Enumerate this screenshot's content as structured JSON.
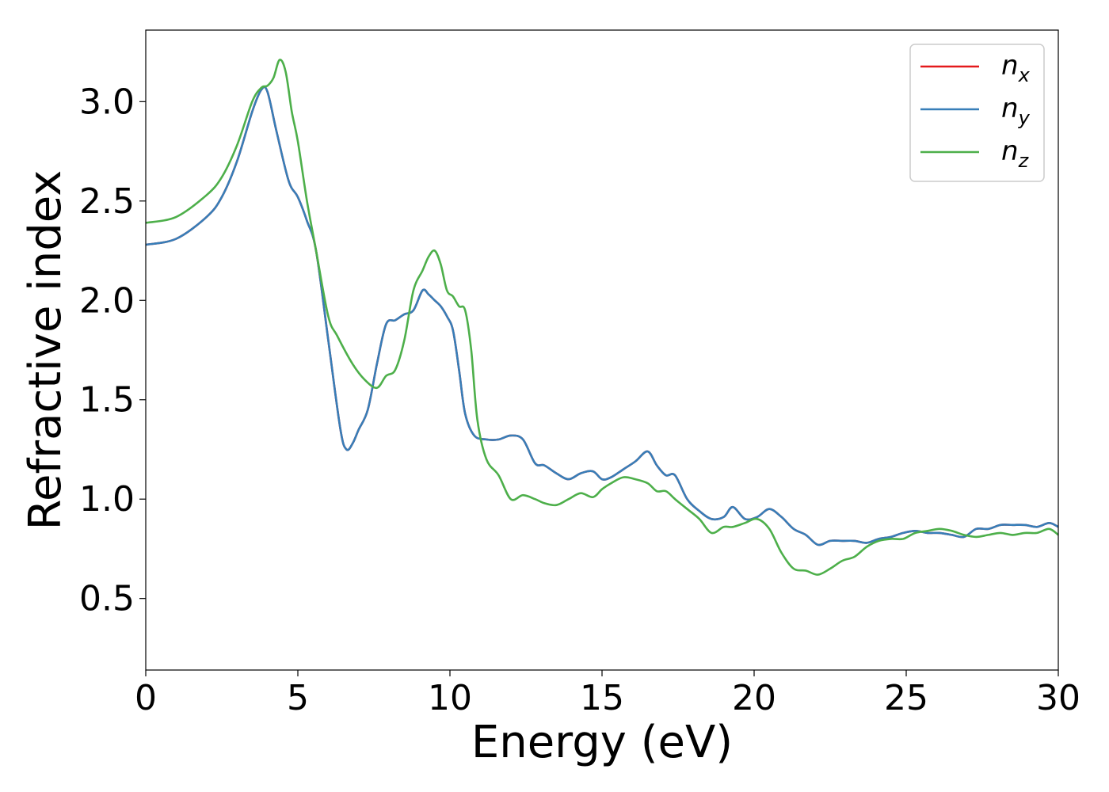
{
  "chart_data": {
    "type": "line",
    "xlabel": "Energy (eV)",
    "ylabel": "Refractive index",
    "xlim": [
      0,
      30
    ],
    "ylim": [
      0.14,
      3.36
    ],
    "xticks": [
      0,
      5,
      10,
      15,
      20,
      25,
      30
    ],
    "xtick_labels": [
      "0",
      "5",
      "10",
      "15",
      "20",
      "25",
      "30"
    ],
    "yticks": [
      0.5,
      1.0,
      1.5,
      2.0,
      2.5,
      3.0
    ],
    "ytick_labels": [
      "0.5",
      "1.0",
      "1.5",
      "2.0",
      "2.5",
      "3.0"
    ],
    "grid": false,
    "legend_position": "top-right",
    "series": [
      {
        "name": "n",
        "sub": "x",
        "color": "#e41a1c",
        "x": [
          0,
          1,
          2,
          2.5,
          3,
          3.5,
          3.8,
          4.0,
          4.3,
          4.7,
          5.0,
          5.3,
          5.6,
          6.0,
          6.4,
          6.6,
          6.8,
          7.0,
          7.3,
          7.6,
          7.9,
          8.2,
          8.5,
          8.8,
          9.1,
          9.3,
          9.5,
          9.7,
          9.9,
          10.1,
          10.3,
          10.5,
          10.8,
          11.2,
          11.6,
          12.0,
          12.4,
          12.8,
          13.1,
          13.5,
          13.9,
          14.3,
          14.7,
          15.0,
          15.3,
          15.7,
          16.1,
          16.5,
          16.8,
          17.1,
          17.4,
          17.8,
          18.2,
          18.6,
          19.0,
          19.3,
          19.7,
          20.1,
          20.5,
          20.9,
          21.3,
          21.7,
          22.1,
          22.5,
          22.9,
          23.3,
          23.7,
          24.1,
          24.5,
          24.9,
          25.3,
          25.7,
          26.1,
          26.5,
          26.9,
          27.3,
          27.7,
          28.1,
          28.5,
          28.9,
          29.3,
          29.7,
          30
        ],
        "y": [
          2.28,
          2.31,
          2.42,
          2.52,
          2.7,
          2.95,
          3.06,
          3.05,
          2.85,
          2.6,
          2.52,
          2.4,
          2.25,
          1.8,
          1.35,
          1.25,
          1.28,
          1.35,
          1.45,
          1.68,
          1.88,
          1.9,
          1.93,
          1.95,
          2.05,
          2.03,
          2.0,
          1.97,
          1.92,
          1.85,
          1.65,
          1.43,
          1.32,
          1.3,
          1.3,
          1.32,
          1.3,
          1.18,
          1.17,
          1.13,
          1.1,
          1.13,
          1.14,
          1.1,
          1.11,
          1.15,
          1.19,
          1.24,
          1.17,
          1.12,
          1.12,
          1.0,
          0.94,
          0.9,
          0.91,
          0.96,
          0.9,
          0.91,
          0.95,
          0.91,
          0.85,
          0.82,
          0.77,
          0.79,
          0.79,
          0.79,
          0.78,
          0.8,
          0.81,
          0.83,
          0.84,
          0.83,
          0.83,
          0.82,
          0.81,
          0.85,
          0.85,
          0.87,
          0.87,
          0.87,
          0.86,
          0.88,
          0.86
        ]
      },
      {
        "name": "n",
        "sub": "y",
        "color": "#377eb8",
        "x": [
          0,
          1,
          2,
          2.5,
          3,
          3.5,
          3.8,
          4.0,
          4.3,
          4.7,
          5.0,
          5.3,
          5.6,
          6.0,
          6.4,
          6.6,
          6.8,
          7.0,
          7.3,
          7.6,
          7.9,
          8.2,
          8.5,
          8.8,
          9.1,
          9.3,
          9.5,
          9.7,
          9.9,
          10.1,
          10.3,
          10.5,
          10.8,
          11.2,
          11.6,
          12.0,
          12.4,
          12.8,
          13.1,
          13.5,
          13.9,
          14.3,
          14.7,
          15.0,
          15.3,
          15.7,
          16.1,
          16.5,
          16.8,
          17.1,
          17.4,
          17.8,
          18.2,
          18.6,
          19.0,
          19.3,
          19.7,
          20.1,
          20.5,
          20.9,
          21.3,
          21.7,
          22.1,
          22.5,
          22.9,
          23.3,
          23.7,
          24.1,
          24.5,
          24.9,
          25.3,
          25.7,
          26.1,
          26.5,
          26.9,
          27.3,
          27.7,
          28.1,
          28.5,
          28.9,
          29.3,
          29.7,
          30
        ],
        "y": [
          2.28,
          2.31,
          2.42,
          2.52,
          2.7,
          2.95,
          3.06,
          3.05,
          2.85,
          2.6,
          2.52,
          2.4,
          2.25,
          1.8,
          1.35,
          1.25,
          1.28,
          1.35,
          1.45,
          1.68,
          1.88,
          1.9,
          1.93,
          1.95,
          2.05,
          2.03,
          2.0,
          1.97,
          1.92,
          1.85,
          1.65,
          1.43,
          1.32,
          1.3,
          1.3,
          1.32,
          1.3,
          1.18,
          1.17,
          1.13,
          1.1,
          1.13,
          1.14,
          1.1,
          1.11,
          1.15,
          1.19,
          1.24,
          1.17,
          1.12,
          1.12,
          1.0,
          0.94,
          0.9,
          0.91,
          0.96,
          0.9,
          0.91,
          0.95,
          0.91,
          0.85,
          0.82,
          0.77,
          0.79,
          0.79,
          0.79,
          0.78,
          0.8,
          0.81,
          0.83,
          0.84,
          0.83,
          0.83,
          0.82,
          0.81,
          0.85,
          0.85,
          0.87,
          0.87,
          0.87,
          0.86,
          0.88,
          0.86
        ]
      },
      {
        "name": "n",
        "sub": "z",
        "color": "#4daf4a",
        "x": [
          0,
          1,
          2,
          2.5,
          3,
          3.5,
          3.8,
          4.0,
          4.2,
          4.4,
          4.6,
          4.8,
          5.0,
          5.3,
          5.6,
          6.0,
          6.3,
          6.8,
          7.2,
          7.6,
          7.9,
          8.2,
          8.5,
          8.8,
          9.1,
          9.3,
          9.5,
          9.7,
          9.9,
          10.1,
          10.3,
          10.5,
          10.7,
          10.9,
          11.2,
          11.6,
          12.0,
          12.4,
          12.8,
          13.1,
          13.5,
          13.9,
          14.3,
          14.7,
          15.0,
          15.3,
          15.7,
          16.1,
          16.5,
          16.8,
          17.1,
          17.4,
          17.8,
          18.2,
          18.6,
          19.0,
          19.3,
          19.7,
          20.1,
          20.5,
          20.9,
          21.3,
          21.7,
          22.1,
          22.5,
          22.9,
          23.3,
          23.7,
          24.1,
          24.5,
          24.9,
          25.3,
          25.7,
          26.1,
          26.5,
          26.9,
          27.3,
          27.7,
          28.1,
          28.5,
          28.9,
          29.3,
          29.7,
          30
        ],
        "y": [
          2.39,
          2.42,
          2.53,
          2.62,
          2.78,
          3.0,
          3.07,
          3.08,
          3.12,
          3.21,
          3.15,
          2.95,
          2.8,
          2.5,
          2.25,
          1.92,
          1.82,
          1.68,
          1.6,
          1.56,
          1.62,
          1.65,
          1.8,
          2.05,
          2.15,
          2.22,
          2.25,
          2.18,
          2.05,
          2.02,
          1.97,
          1.95,
          1.75,
          1.4,
          1.2,
          1.12,
          1.0,
          1.02,
          1.0,
          0.98,
          0.97,
          1.0,
          1.03,
          1.01,
          1.05,
          1.08,
          1.11,
          1.1,
          1.08,
          1.04,
          1.04,
          1.0,
          0.95,
          0.9,
          0.83,
          0.86,
          0.86,
          0.88,
          0.9,
          0.85,
          0.73,
          0.65,
          0.64,
          0.62,
          0.65,
          0.69,
          0.71,
          0.76,
          0.79,
          0.8,
          0.8,
          0.83,
          0.84,
          0.85,
          0.84,
          0.82,
          0.81,
          0.82,
          0.83,
          0.82,
          0.83,
          0.83,
          0.85,
          0.82
        ]
      }
    ]
  }
}
